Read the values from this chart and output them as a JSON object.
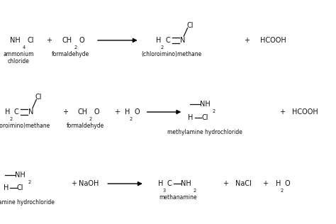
{
  "bg_color": "#ffffff",
  "text_color": "#111111",
  "fs": 7.0,
  "sfs": 5.8,
  "sub_fs": 5.5,
  "rows": [
    0.82,
    0.5,
    0.18
  ],
  "fig_w": 4.74,
  "fig_h": 3.16,
  "dpi": 100
}
